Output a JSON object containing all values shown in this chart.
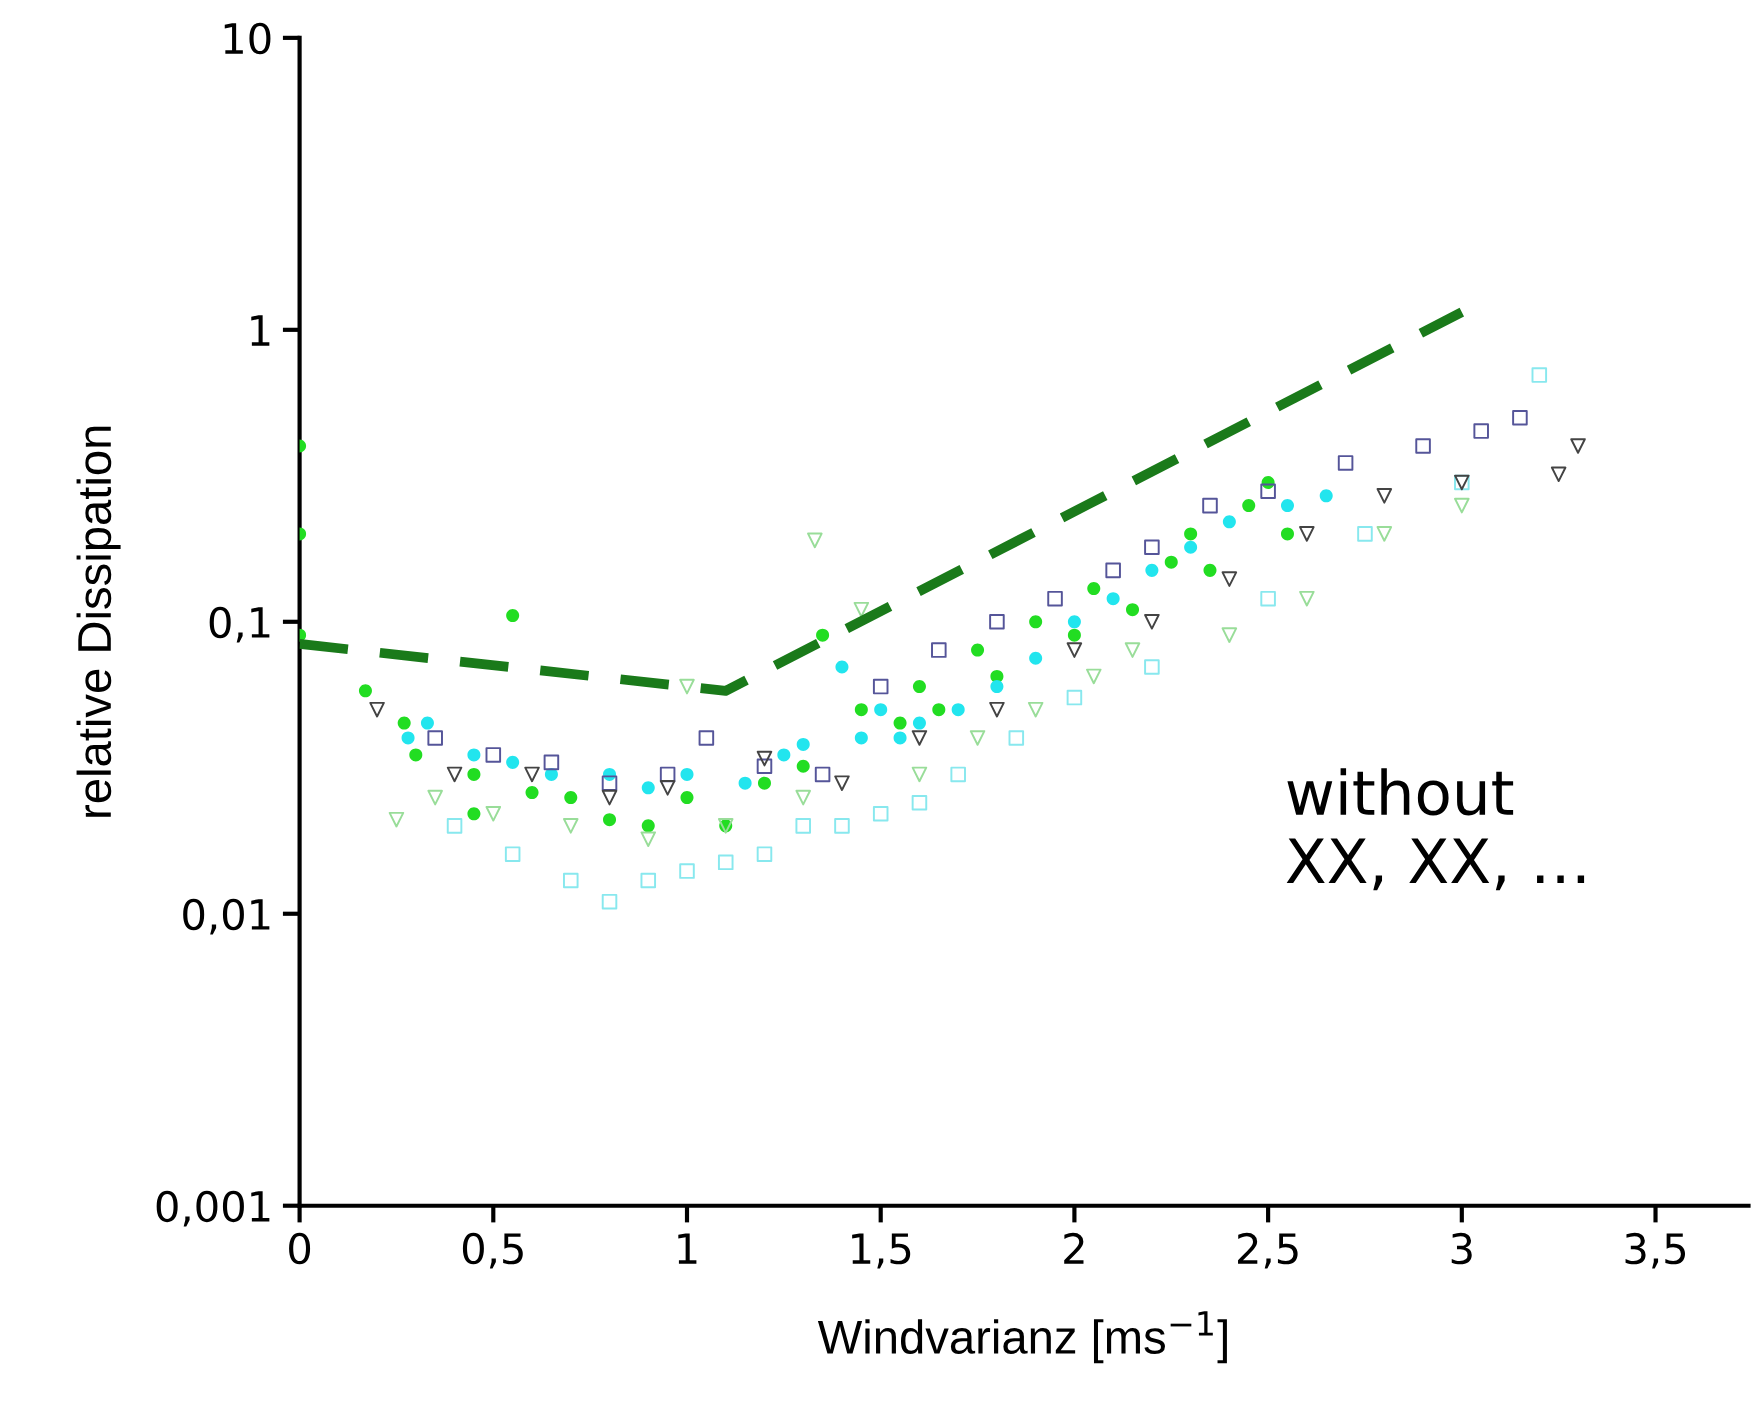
{
  "chart_data": {
    "type": "scatter",
    "xlabel": "Windvarianz [ms$^{−1}$]",
    "ylabel": "relative Dissipation",
    "log": "y",
    "grid": false,
    "legend": false,
    "xlim": [
      0,
      3.74
    ],
    "ylim": [
      0.001,
      10
    ],
    "xticks": [
      0,
      {
        "value": 0.5,
        "label": "0,5"
      },
      1,
      {
        "value": 1.5,
        "label": "1,5"
      },
      2,
      {
        "value": 2.5,
        "label": "2,5"
      },
      3,
      {
        "value": 3.5,
        "label": "3,5"
      }
    ],
    "yticks": [
      {
        "value": 0.001,
        "label": "0,001"
      },
      {
        "value": 0.01,
        "label": "0,01"
      },
      {
        "value": 0.1,
        "label": "0,1"
      },
      1,
      10
    ],
    "annotations": [
      "without\nXX, XX, …"
    ],
    "series": [
      {
        "marker": "circle",
        "color": "#22dd22",
        "x": [
          0,
          0,
          0,
          0.17,
          0.27,
          0.3,
          0.45,
          0.45,
          0.55,
          0.6,
          0.7,
          0.8,
          0.9,
          1.0,
          1.1,
          1.2,
          1.3,
          1.35,
          1.45,
          1.55,
          1.6,
          1.65,
          1.75,
          1.8,
          1.9,
          2.0,
          2.05,
          2.15,
          2.25,
          2.3,
          2.35,
          2.45,
          2.5,
          2.55
        ],
        "values": [
          0.09,
          0.2,
          0.4,
          0.058,
          0.045,
          0.035,
          0.03,
          0.022,
          0.105,
          0.026,
          0.025,
          0.021,
          0.02,
          0.025,
          0.02,
          0.028,
          0.032,
          0.09,
          0.05,
          0.045,
          0.06,
          0.05,
          0.08,
          0.065,
          0.1,
          0.09,
          0.13,
          0.11,
          0.16,
          0.2,
          0.15,
          0.25,
          0.3,
          0.2
        ]
      },
      {
        "marker": "circle",
        "color": "#22e5ee",
        "x": [
          0.28,
          0.33,
          0.45,
          0.55,
          0.65,
          0.8,
          0.9,
          1.0,
          1.15,
          1.25,
          1.3,
          1.4,
          1.45,
          1.5,
          1.55,
          1.6,
          1.7,
          1.8,
          1.9,
          2.0,
          2.1,
          2.2,
          2.3,
          2.4,
          2.55,
          2.65
        ],
        "values": [
          0.04,
          0.045,
          0.035,
          0.033,
          0.03,
          0.03,
          0.027,
          0.03,
          0.028,
          0.035,
          0.038,
          0.07,
          0.04,
          0.05,
          0.04,
          0.045,
          0.05,
          0.06,
          0.075,
          0.1,
          0.12,
          0.15,
          0.18,
          0.22,
          0.25,
          0.27
        ]
      },
      {
        "marker": "square",
        "color": "#555599",
        "x": [
          0.35,
          0.5,
          0.65,
          0.8,
          0.95,
          1.05,
          1.2,
          1.35,
          1.5,
          1.65,
          1.8,
          1.95,
          2.1,
          2.2,
          2.35,
          2.5,
          2.7,
          2.9,
          3.05,
          3.15
        ],
        "values": [
          0.04,
          0.035,
          0.033,
          0.028,
          0.03,
          0.04,
          0.032,
          0.03,
          0.06,
          0.08,
          0.1,
          0.12,
          0.15,
          0.18,
          0.25,
          0.28,
          0.35,
          0.4,
          0.45,
          0.5
        ]
      },
      {
        "marker": "square",
        "color": "#88e8ee",
        "x": [
          0.4,
          0.55,
          0.7,
          0.8,
          0.9,
          1.0,
          1.1,
          1.2,
          1.3,
          1.4,
          1.5,
          1.6,
          1.7,
          1.85,
          2.0,
          2.2,
          2.5,
          2.75,
          3.0,
          3.2
        ],
        "values": [
          0.02,
          0.016,
          0.013,
          0.011,
          0.013,
          0.014,
          0.015,
          0.016,
          0.02,
          0.02,
          0.022,
          0.024,
          0.03,
          0.04,
          0.055,
          0.07,
          0.12,
          0.2,
          0.3,
          0.7
        ]
      },
      {
        "marker": "triangle",
        "color": "#444444",
        "x": [
          0.2,
          0.4,
          0.6,
          0.8,
          0.95,
          1.2,
          1.4,
          1.6,
          1.8,
          2.0,
          2.2,
          2.4,
          2.6,
          2.8,
          3.0,
          3.25,
          3.3
        ],
        "values": [
          0.05,
          0.03,
          0.03,
          0.025,
          0.027,
          0.034,
          0.028,
          0.04,
          0.05,
          0.08,
          0.1,
          0.14,
          0.2,
          0.27,
          0.3,
          0.32,
          0.4
        ]
      },
      {
        "marker": "triangle",
        "color": "#99dd99",
        "x": [
          0.25,
          0.35,
          0.5,
          0.7,
          0.9,
          1.0,
          1.1,
          1.3,
          1.33,
          1.45,
          1.6,
          1.75,
          1.9,
          2.05,
          2.15,
          2.4,
          2.6,
          2.8,
          3.0
        ],
        "values": [
          0.021,
          0.025,
          0.022,
          0.02,
          0.018,
          0.06,
          0.02,
          0.025,
          0.19,
          0.11,
          0.03,
          0.04,
          0.05,
          0.065,
          0.08,
          0.09,
          0.12,
          0.2,
          0.25
        ]
      },
      {
        "type": "line",
        "line_style": "dashed",
        "marker": "none",
        "color": "#1a7a1a",
        "x": [
          0,
          1.1,
          3.0
        ],
        "values": [
          0.084,
          0.058,
          1.15
        ]
      }
    ]
  }
}
